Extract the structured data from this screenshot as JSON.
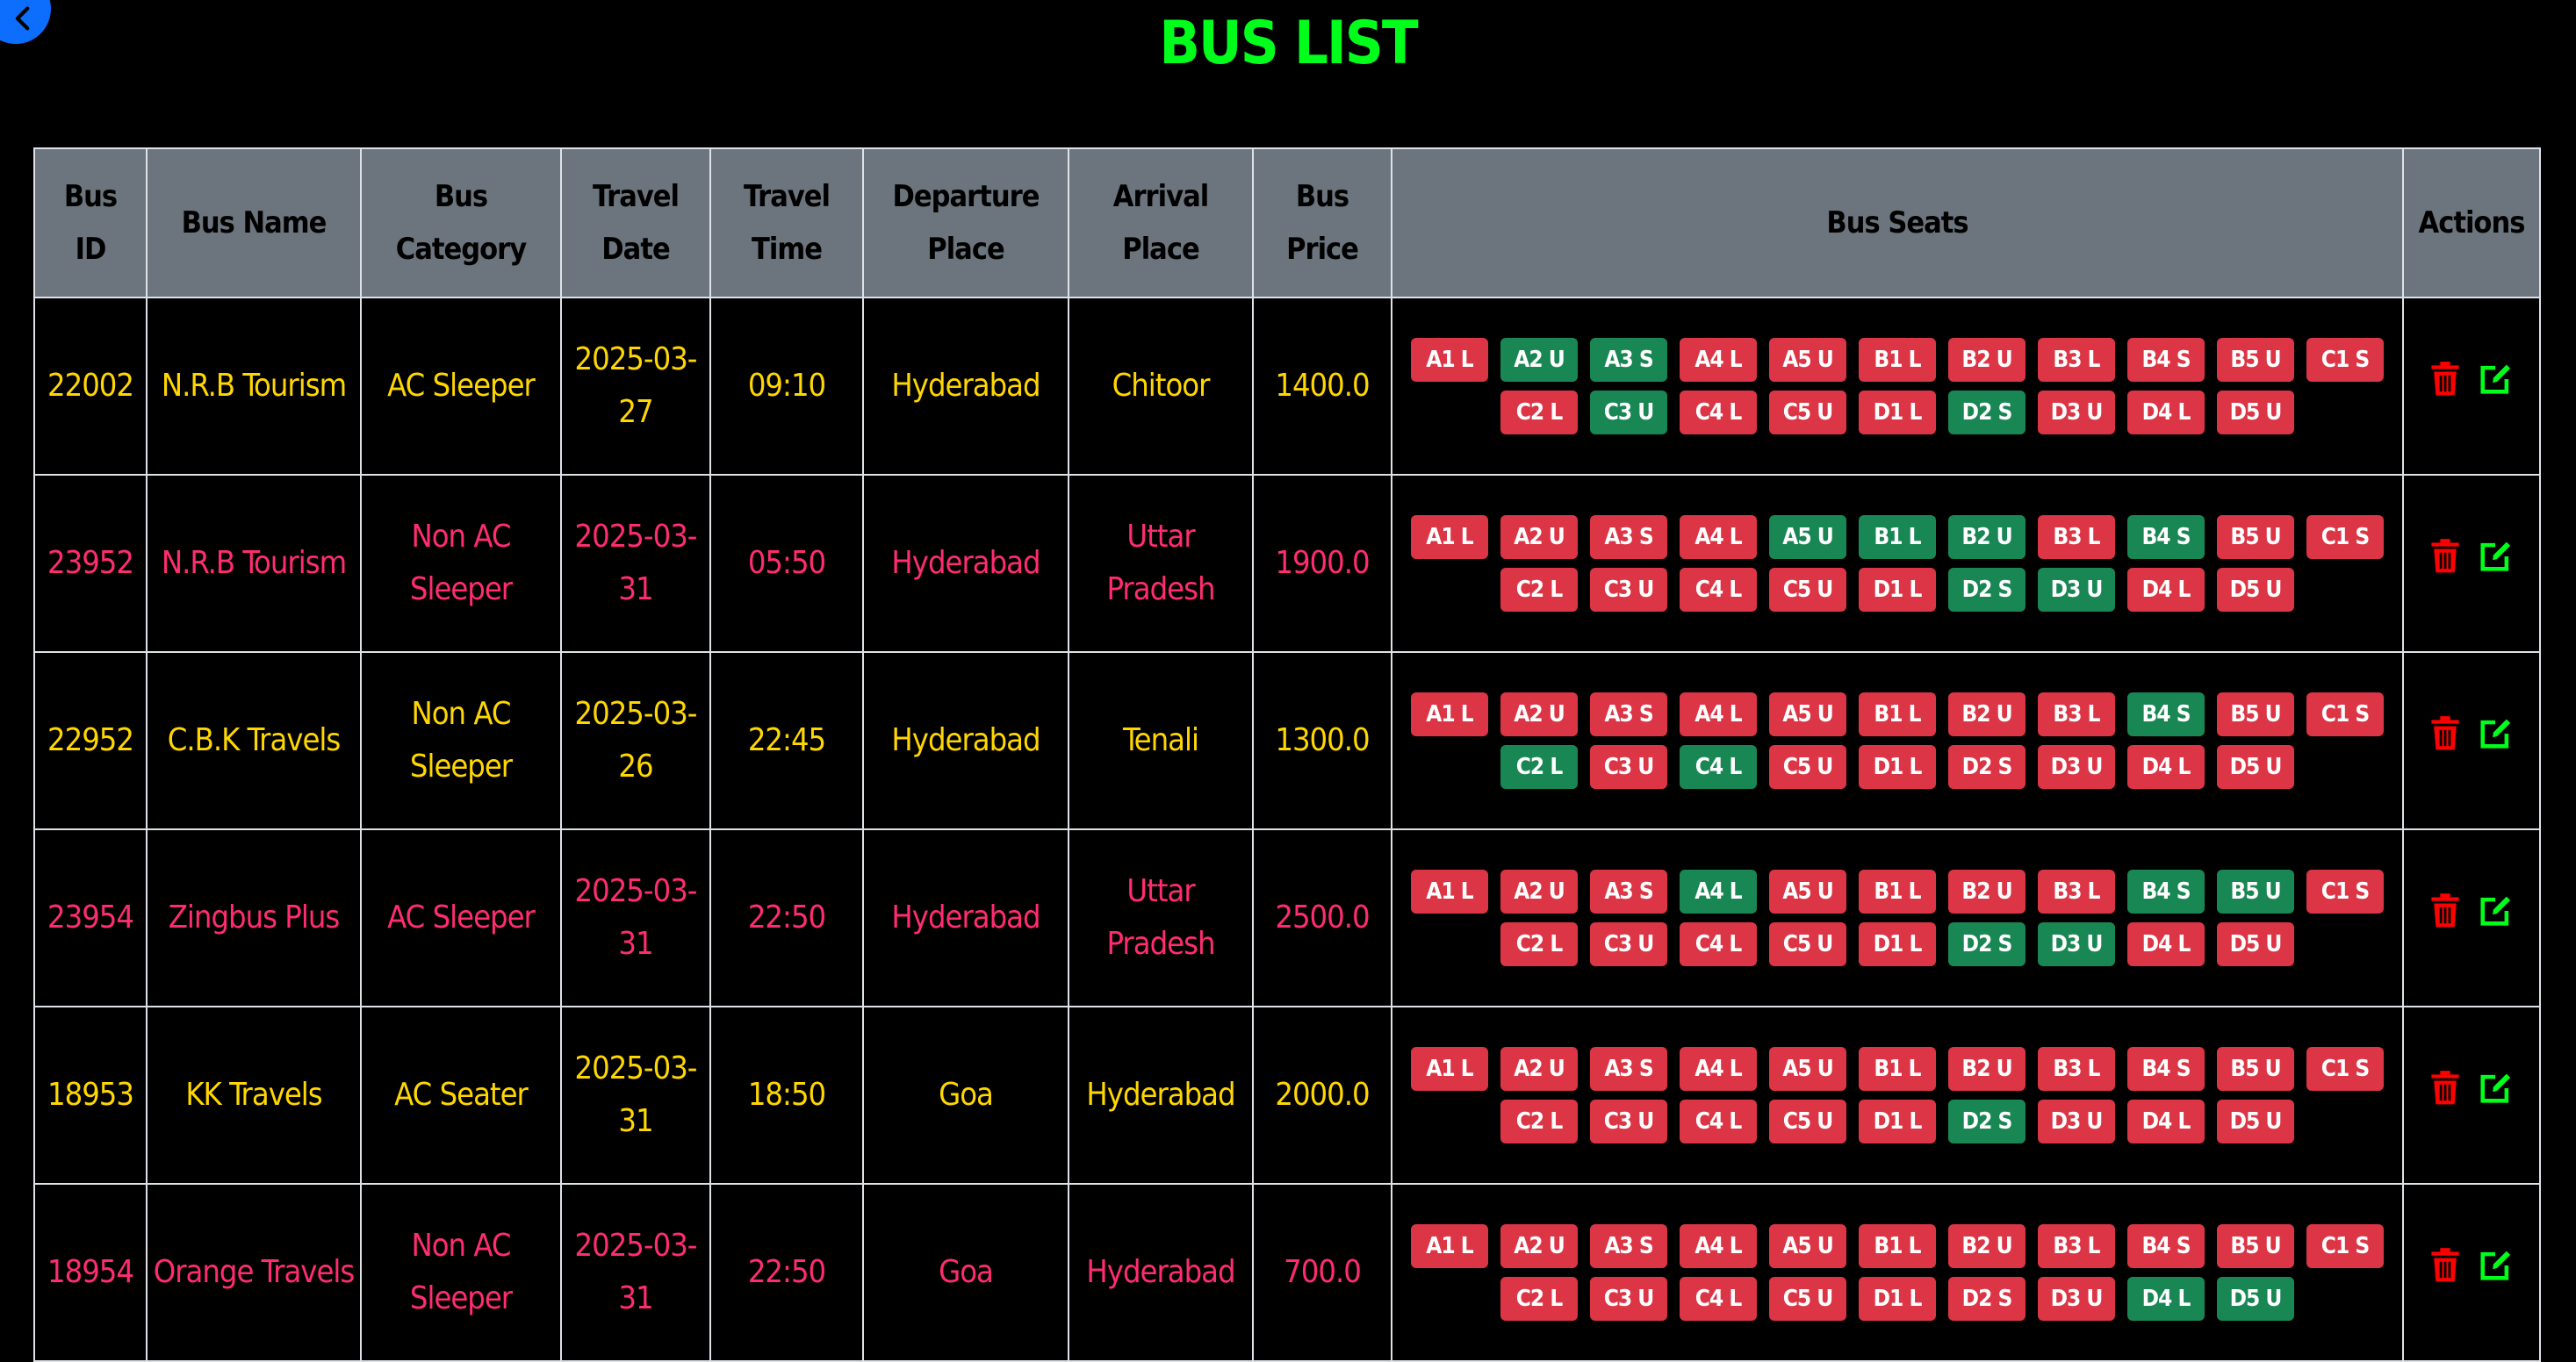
{
  "page": {
    "title": "BUS LIST"
  },
  "colors": {
    "title": "#00ff1a",
    "header_bg": "#6c757d",
    "row_odd": "#ffd700",
    "row_even": "#ff2d6f",
    "seat_booked": "#dc3545",
    "seat_available": "#198754",
    "delete_icon": "#ff0000",
    "edit_icon": "#00ff1a",
    "back_button": "#0d6efd"
  },
  "icons": {
    "back": "arrow-left-icon",
    "delete": "trash-icon",
    "edit": "edit-icon"
  },
  "table": {
    "headers": [
      [
        "Bus",
        "ID"
      ],
      [
        "Bus Name"
      ],
      [
        "Bus",
        "Category"
      ],
      [
        "Travel",
        "Date"
      ],
      [
        "Travel",
        "Time"
      ],
      [
        "Departure",
        "Place"
      ],
      [
        "Arrival",
        "Place"
      ],
      [
        "Bus",
        "Price"
      ],
      [
        "Bus Seats"
      ],
      [
        "Actions"
      ]
    ],
    "rows": [
      {
        "bus_id": "22002",
        "bus_name": "N.R.B Tourism",
        "category": [
          "AC Sleeper"
        ],
        "date": [
          "2025-03-",
          "27"
        ],
        "time": "09:10",
        "departure": [
          "Hyderabad"
        ],
        "arrival": [
          "Chitoor"
        ],
        "price": "1400.0",
        "seats": [
          {
            "label": "A1 L",
            "available": false
          },
          {
            "label": "A2 U",
            "available": true
          },
          {
            "label": "A3 S",
            "available": true
          },
          {
            "label": "A4 L",
            "available": false
          },
          {
            "label": "A5 U",
            "available": false
          },
          {
            "label": "B1 L",
            "available": false
          },
          {
            "label": "B2 U",
            "available": false
          },
          {
            "label": "B3 L",
            "available": false
          },
          {
            "label": "B4 S",
            "available": false
          },
          {
            "label": "B5 U",
            "available": false
          },
          {
            "label": "C1 S",
            "available": false
          },
          {
            "label": "C2 L",
            "available": false
          },
          {
            "label": "C3 U",
            "available": true
          },
          {
            "label": "C4 L",
            "available": false
          },
          {
            "label": "C5 U",
            "available": false
          },
          {
            "label": "D1 L",
            "available": false
          },
          {
            "label": "D2 S",
            "available": true
          },
          {
            "label": "D3 U",
            "available": false
          },
          {
            "label": "D4 L",
            "available": false
          },
          {
            "label": "D5 U",
            "available": false
          }
        ]
      },
      {
        "bus_id": "23952",
        "bus_name": "N.R.B Tourism",
        "category": [
          "Non AC",
          "Sleeper"
        ],
        "date": [
          "2025-03-",
          "31"
        ],
        "time": "05:50",
        "departure": [
          "Hyderabad"
        ],
        "arrival": [
          "Uttar",
          "Pradesh"
        ],
        "price": "1900.0",
        "seats": [
          {
            "label": "A1 L",
            "available": false
          },
          {
            "label": "A2 U",
            "available": false
          },
          {
            "label": "A3 S",
            "available": false
          },
          {
            "label": "A4 L",
            "available": false
          },
          {
            "label": "A5 U",
            "available": true
          },
          {
            "label": "B1 L",
            "available": true
          },
          {
            "label": "B2 U",
            "available": true
          },
          {
            "label": "B3 L",
            "available": false
          },
          {
            "label": "B4 S",
            "available": true
          },
          {
            "label": "B5 U",
            "available": false
          },
          {
            "label": "C1 S",
            "available": false
          },
          {
            "label": "C2 L",
            "available": false
          },
          {
            "label": "C3 U",
            "available": false
          },
          {
            "label": "C4 L",
            "available": false
          },
          {
            "label": "C5 U",
            "available": false
          },
          {
            "label": "D1 L",
            "available": false
          },
          {
            "label": "D2 S",
            "available": true
          },
          {
            "label": "D3 U",
            "available": true
          },
          {
            "label": "D4 L",
            "available": false
          },
          {
            "label": "D5 U",
            "available": false
          }
        ]
      },
      {
        "bus_id": "22952",
        "bus_name": "C.B.K Travels",
        "category": [
          "Non AC",
          "Sleeper"
        ],
        "date": [
          "2025-03-",
          "26"
        ],
        "time": "22:45",
        "departure": [
          "Hyderabad"
        ],
        "arrival": [
          "Tenali"
        ],
        "price": "1300.0",
        "seats": [
          {
            "label": "A1 L",
            "available": false
          },
          {
            "label": "A2 U",
            "available": false
          },
          {
            "label": "A3 S",
            "available": false
          },
          {
            "label": "A4 L",
            "available": false
          },
          {
            "label": "A5 U",
            "available": false
          },
          {
            "label": "B1 L",
            "available": false
          },
          {
            "label": "B2 U",
            "available": false
          },
          {
            "label": "B3 L",
            "available": false
          },
          {
            "label": "B4 S",
            "available": true
          },
          {
            "label": "B5 U",
            "available": false
          },
          {
            "label": "C1 S",
            "available": false
          },
          {
            "label": "C2 L",
            "available": true
          },
          {
            "label": "C3 U",
            "available": false
          },
          {
            "label": "C4 L",
            "available": true
          },
          {
            "label": "C5 U",
            "available": false
          },
          {
            "label": "D1 L",
            "available": false
          },
          {
            "label": "D2 S",
            "available": false
          },
          {
            "label": "D3 U",
            "available": false
          },
          {
            "label": "D4 L",
            "available": false
          },
          {
            "label": "D5 U",
            "available": false
          }
        ]
      },
      {
        "bus_id": "23954",
        "bus_name": "Zingbus Plus",
        "category": [
          "AC Sleeper"
        ],
        "date": [
          "2025-03-",
          "31"
        ],
        "time": "22:50",
        "departure": [
          "Hyderabad"
        ],
        "arrival": [
          "Uttar",
          "Pradesh"
        ],
        "price": "2500.0",
        "seats": [
          {
            "label": "A1 L",
            "available": false
          },
          {
            "label": "A2 U",
            "available": false
          },
          {
            "label": "A3 S",
            "available": false
          },
          {
            "label": "A4 L",
            "available": true
          },
          {
            "label": "A5 U",
            "available": false
          },
          {
            "label": "B1 L",
            "available": false
          },
          {
            "label": "B2 U",
            "available": false
          },
          {
            "label": "B3 L",
            "available": false
          },
          {
            "label": "B4 S",
            "available": true
          },
          {
            "label": "B5 U",
            "available": true
          },
          {
            "label": "C1 S",
            "available": false
          },
          {
            "label": "C2 L",
            "available": false
          },
          {
            "label": "C3 U",
            "available": false
          },
          {
            "label": "C4 L",
            "available": false
          },
          {
            "label": "C5 U",
            "available": false
          },
          {
            "label": "D1 L",
            "available": false
          },
          {
            "label": "D2 S",
            "available": true
          },
          {
            "label": "D3 U",
            "available": true
          },
          {
            "label": "D4 L",
            "available": false
          },
          {
            "label": "D5 U",
            "available": false
          }
        ]
      },
      {
        "bus_id": "18953",
        "bus_name": "KK Travels",
        "category": [
          "AC Seater"
        ],
        "date": [
          "2025-03-",
          "31"
        ],
        "time": "18:50",
        "departure": [
          "Goa"
        ],
        "arrival": [
          "Hyderabad"
        ],
        "price": "2000.0",
        "seats": [
          {
            "label": "A1 L",
            "available": false
          },
          {
            "label": "A2 U",
            "available": false
          },
          {
            "label": "A3 S",
            "available": false
          },
          {
            "label": "A4 L",
            "available": false
          },
          {
            "label": "A5 U",
            "available": false
          },
          {
            "label": "B1 L",
            "available": false
          },
          {
            "label": "B2 U",
            "available": false
          },
          {
            "label": "B3 L",
            "available": false
          },
          {
            "label": "B4 S",
            "available": false
          },
          {
            "label": "B5 U",
            "available": false
          },
          {
            "label": "C1 S",
            "available": false
          },
          {
            "label": "C2 L",
            "available": false
          },
          {
            "label": "C3 U",
            "available": false
          },
          {
            "label": "C4 L",
            "available": false
          },
          {
            "label": "C5 U",
            "available": false
          },
          {
            "label": "D1 L",
            "available": false
          },
          {
            "label": "D2 S",
            "available": true
          },
          {
            "label": "D3 U",
            "available": false
          },
          {
            "label": "D4 L",
            "available": false
          },
          {
            "label": "D5 U",
            "available": false
          }
        ]
      },
      {
        "bus_id": "18954",
        "bus_name": "Orange Travels",
        "category": [
          "Non AC",
          "Sleeper"
        ],
        "date": [
          "2025-03-",
          "31"
        ],
        "time": "22:50",
        "departure": [
          "Goa"
        ],
        "arrival": [
          "Hyderabad"
        ],
        "price": "700.0",
        "seats": [
          {
            "label": "A1 L",
            "available": false
          },
          {
            "label": "A2 U",
            "available": false
          },
          {
            "label": "A3 S",
            "available": false
          },
          {
            "label": "A4 L",
            "available": false
          },
          {
            "label": "A5 U",
            "available": false
          },
          {
            "label": "B1 L",
            "available": false
          },
          {
            "label": "B2 U",
            "available": false
          },
          {
            "label": "B3 L",
            "available": false
          },
          {
            "label": "B4 S",
            "available": false
          },
          {
            "label": "B5 U",
            "available": false
          },
          {
            "label": "C1 S",
            "available": false
          },
          {
            "label": "C2 L",
            "available": false
          },
          {
            "label": "C3 U",
            "available": false
          },
          {
            "label": "C4 L",
            "available": false
          },
          {
            "label": "C5 U",
            "available": false
          },
          {
            "label": "D1 L",
            "available": false
          },
          {
            "label": "D2 S",
            "available": false
          },
          {
            "label": "D3 U",
            "available": false
          },
          {
            "label": "D4 L",
            "available": true
          },
          {
            "label": "D5 U",
            "available": true
          }
        ]
      }
    ]
  }
}
